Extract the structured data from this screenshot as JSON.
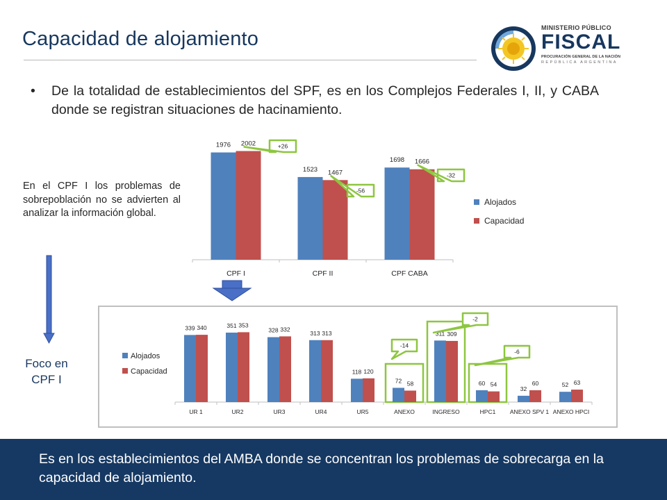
{
  "header": {
    "title": "Capacidad de alojamiento",
    "logo_line1": "MINISTERIO PÚBLICO",
    "logo_line2": "FISCAL",
    "logo_line3": "PROCURACIÓN GENERAL DE LA NACIÓN",
    "logo_line4": "REPÚBLICA ARGENTINA"
  },
  "bullet": "De la totalidad de establecimientos del SPF, es en los Complejos Federales I, II, y CABA donde se registran situaciones de hacinamiento.",
  "side_note": "En el CPF I los problemas de sobrepoblación no se advierten al analizar la información global.",
  "foco_label": "Foco en CPF I",
  "footer": "Es en los establecimientos del AMBA donde se concentran los problemas de sobrecarga en la capacidad de alojamiento.",
  "colors": {
    "alojados": "#4f81bd",
    "capacidad": "#c0504d",
    "callout": "#8dc63f",
    "arrow": "#4a6fc6",
    "footer_bg": "#163963",
    "title": "#17375e"
  },
  "chart_data": [
    {
      "type": "bar",
      "categories": [
        "CPF I",
        "CPF II",
        "CPF CABA"
      ],
      "series": [
        {
          "name": "Alojados",
          "values": [
            1976,
            1523,
            1698
          ]
        },
        {
          "name": "Capacidad",
          "values": [
            2002,
            1467,
            1666
          ]
        }
      ],
      "ylim": [
        0,
        2200
      ],
      "legend": "right",
      "grid": false,
      "annotations": [
        "+26",
        "-56",
        "-32"
      ]
    },
    {
      "type": "bar",
      "categories": [
        "UR 1",
        "UR2",
        "UR3",
        "UR4",
        "UR5",
        "ANEXO",
        "INGRESO",
        "HPC1",
        "ANEXO SPV 1",
        "ANEXO HPCI"
      ],
      "series": [
        {
          "name": "Alojados",
          "values": [
            339,
            351,
            328,
            313,
            118,
            72,
            311,
            60,
            32,
            52
          ]
        },
        {
          "name": "Capacidad",
          "values": [
            340,
            353,
            332,
            313,
            120,
            58,
            309,
            54,
            60,
            63
          ]
        }
      ],
      "ylim": [
        0,
        400
      ],
      "legend": "left",
      "grid": false,
      "highlighted": [
        "ANEXO",
        "INGRESO",
        "HPC1"
      ],
      "annotations": [
        {
          "category": "ANEXO",
          "text": "-14"
        },
        {
          "category": "INGRESO",
          "text": "-2"
        },
        {
          "category": "HPC1",
          "text": "-6"
        }
      ]
    }
  ]
}
